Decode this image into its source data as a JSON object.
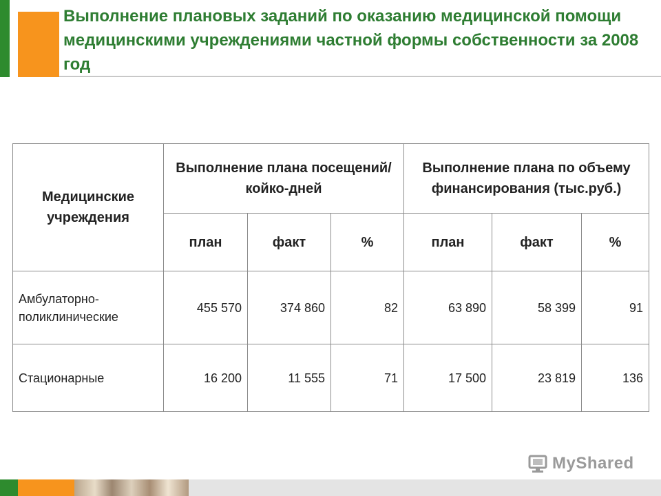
{
  "title": "Выполнение плановых заданий по оказанию медицинской помощи медицинскими учреждениями частной формы собственности за 2008 год",
  "table": {
    "header_institutions": "Медицинские учреждения",
    "header_visits": "Выполнение плана посещений/койко-дней",
    "header_finance": "Выполнение плана по объему финансирования (тыс.руб.)",
    "sub_plan_1": "план",
    "sub_fact_1": "факт",
    "sub_pct_1": "%",
    "sub_plan_2": "план",
    "sub_fact_2": "факт",
    "sub_pct_2": "%",
    "rows": [
      {
        "name": "Амбулаторно-поликлинические",
        "visits_plan": "455 570",
        "visits_fact": "374 860",
        "visits_pct": "82",
        "fin_plan": "63 890",
        "fin_fact": "58 399",
        "fin_pct": "91"
      },
      {
        "name": "Стационарные",
        "visits_plan": "16 200",
        "visits_fact": "11 555",
        "visits_pct": "71",
        "fin_plan": "17 500",
        "fin_fact": "23 819",
        "fin_pct": "136"
      }
    ]
  },
  "watermark": {
    "text": "MyShared",
    "icon": "myshared-logo-icon"
  },
  "colors": {
    "title": "#2e7d32",
    "green": "#2e8b2e",
    "orange": "#f7941d"
  }
}
